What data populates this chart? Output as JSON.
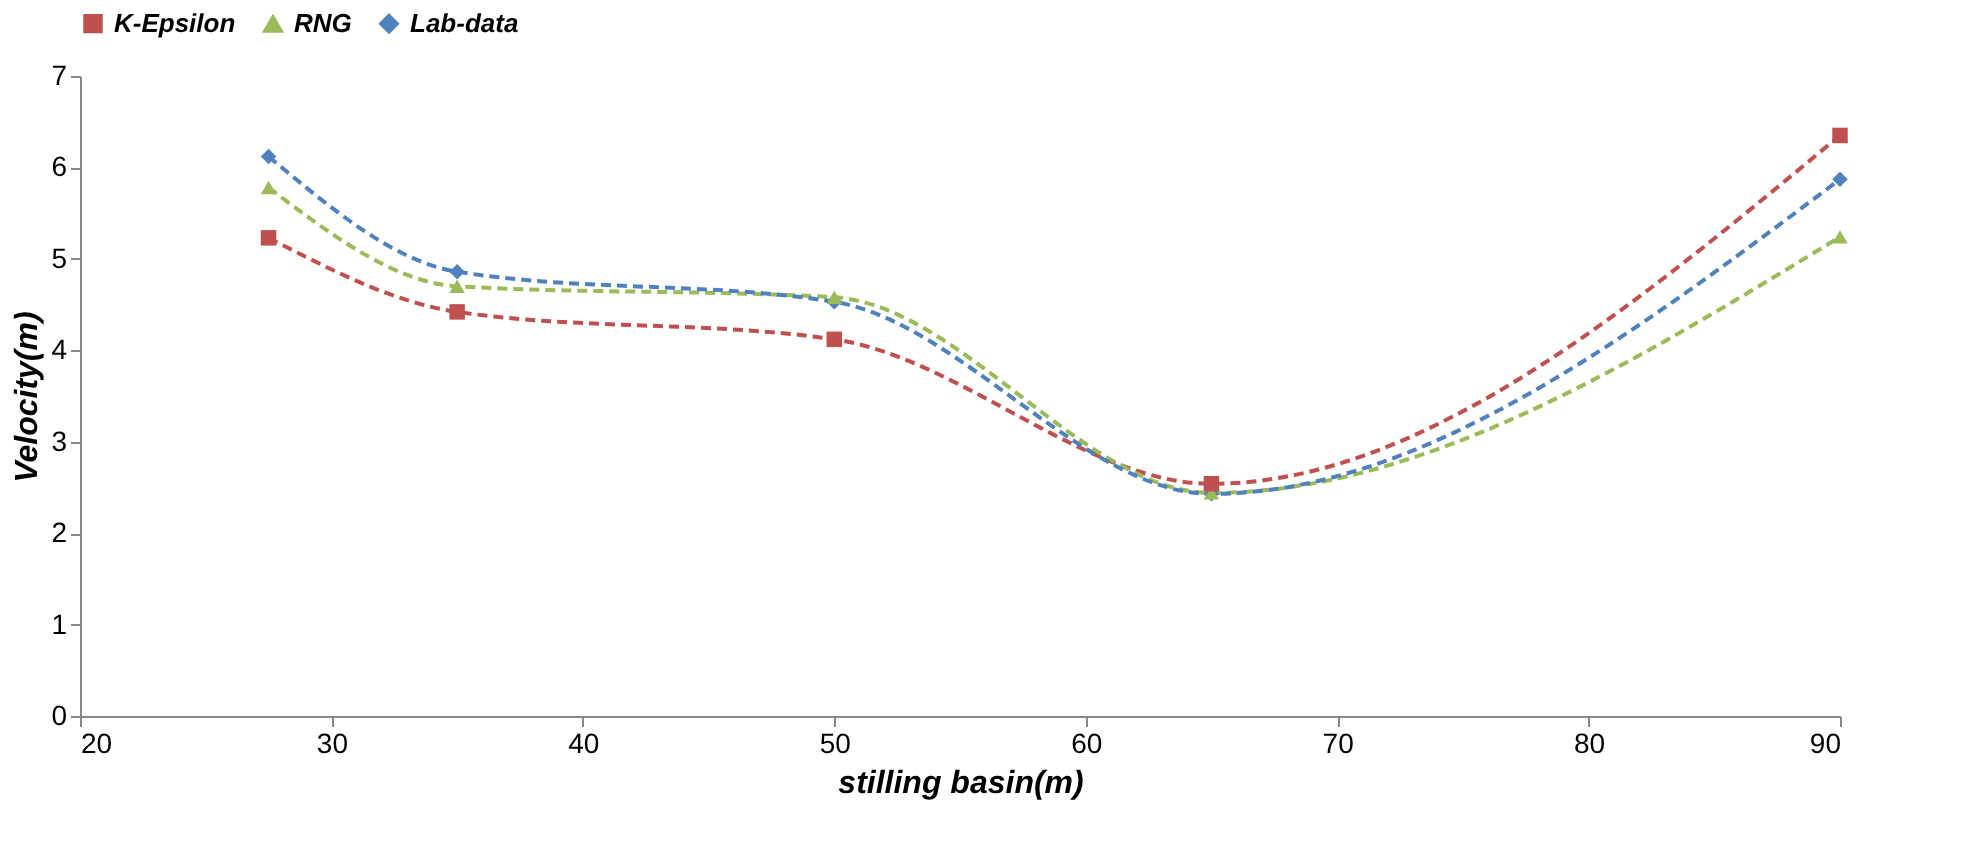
{
  "chart_data": {
    "type": "line",
    "xlabel": "stilling basin(m)",
    "ylabel": "Velocity(m)",
    "x": [
      27.5,
      35,
      50,
      65,
      90
    ],
    "series": [
      {
        "name": "K-Epsilon",
        "color": "#c0504d",
        "marker": "square",
        "values": [
          5.23,
          4.42,
          4.12,
          2.54,
          6.35
        ]
      },
      {
        "name": "RNG",
        "color": "#9bbb59",
        "marker": "triangle",
        "values": [
          5.78,
          4.7,
          4.58,
          2.44,
          5.24
        ]
      },
      {
        "name": "Lab-data",
        "color": "#4f81bd",
        "marker": "diamond",
        "values": [
          6.12,
          4.86,
          4.53,
          2.43,
          5.87
        ]
      }
    ],
    "xlim": [
      20,
      90
    ],
    "xticks": [
      20,
      30,
      40,
      50,
      60,
      70,
      80,
      90
    ],
    "ylim": [
      0,
      7
    ],
    "yticks": [
      0,
      1,
      2,
      3,
      4,
      5,
      6,
      7
    ],
    "grid": false,
    "legend": "top",
    "line_style": "dashed"
  }
}
